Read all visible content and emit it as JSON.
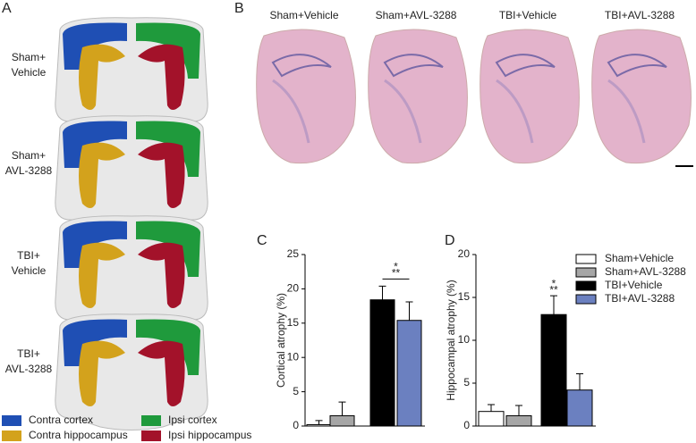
{
  "panels": {
    "A": "A",
    "B": "B",
    "C": "C",
    "D": "D"
  },
  "panel_a": {
    "rows": [
      [
        "Sham+",
        "Vehicle"
      ],
      [
        "Sham+",
        "AVL-3288"
      ],
      [
        "TBI+",
        "Vehicle"
      ],
      [
        "TBI+",
        "AVL-3288"
      ]
    ],
    "legend": [
      {
        "name": "Contra cortex",
        "color": "#1f4fb4"
      },
      {
        "name": "Ipsi cortex",
        "color": "#1f9a3c"
      },
      {
        "name": "Contra hippocampus",
        "color": "#d3a21c"
      },
      {
        "name": "Ipsi hippocampus",
        "color": "#a3122a"
      }
    ]
  },
  "panel_b": {
    "columns": [
      "Sham+Vehicle",
      "Sham+AVL-3288",
      "TBI+Vehicle",
      "TBI+AVL-3288"
    ]
  },
  "chart_data": [
    {
      "type": "bar",
      "y_label": "Cortical atrophy (%)",
      "categories": [
        "Sham+Vehicle",
        "Sham+AVL-3288",
        "TBI+Vehicle",
        "TBI+AVL-3288"
      ],
      "values": [
        0.2,
        1.5,
        18.4,
        15.4
      ],
      "errors": [
        0.6,
        2.0,
        2.0,
        2.7
      ],
      "colors": [
        "#ffffff",
        "#a6a6a6",
        "#000000",
        "#6b80c0"
      ],
      "ylim": [
        0,
        25
      ],
      "yticks": [
        0,
        5,
        10,
        15,
        20,
        25
      ],
      "annotation": [
        "*",
        "**"
      ]
    },
    {
      "type": "bar",
      "y_label": "Hippocampal atrophy (%)",
      "categories": [
        "Sham+Vehicle",
        "Sham+AVL-3288",
        "TBI+Vehicle",
        "TBI+AVL-3288"
      ],
      "values": [
        1.7,
        1.2,
        13.0,
        4.2
      ],
      "errors": [
        0.8,
        1.2,
        2.2,
        1.9
      ],
      "colors": [
        "#ffffff",
        "#a6a6a6",
        "#000000",
        "#6b80c0"
      ],
      "ylim": [
        0,
        20
      ],
      "yticks": [
        0,
        5,
        10,
        15,
        20
      ],
      "annotation": [
        "*",
        "**"
      ],
      "legend": "upper right"
    }
  ]
}
